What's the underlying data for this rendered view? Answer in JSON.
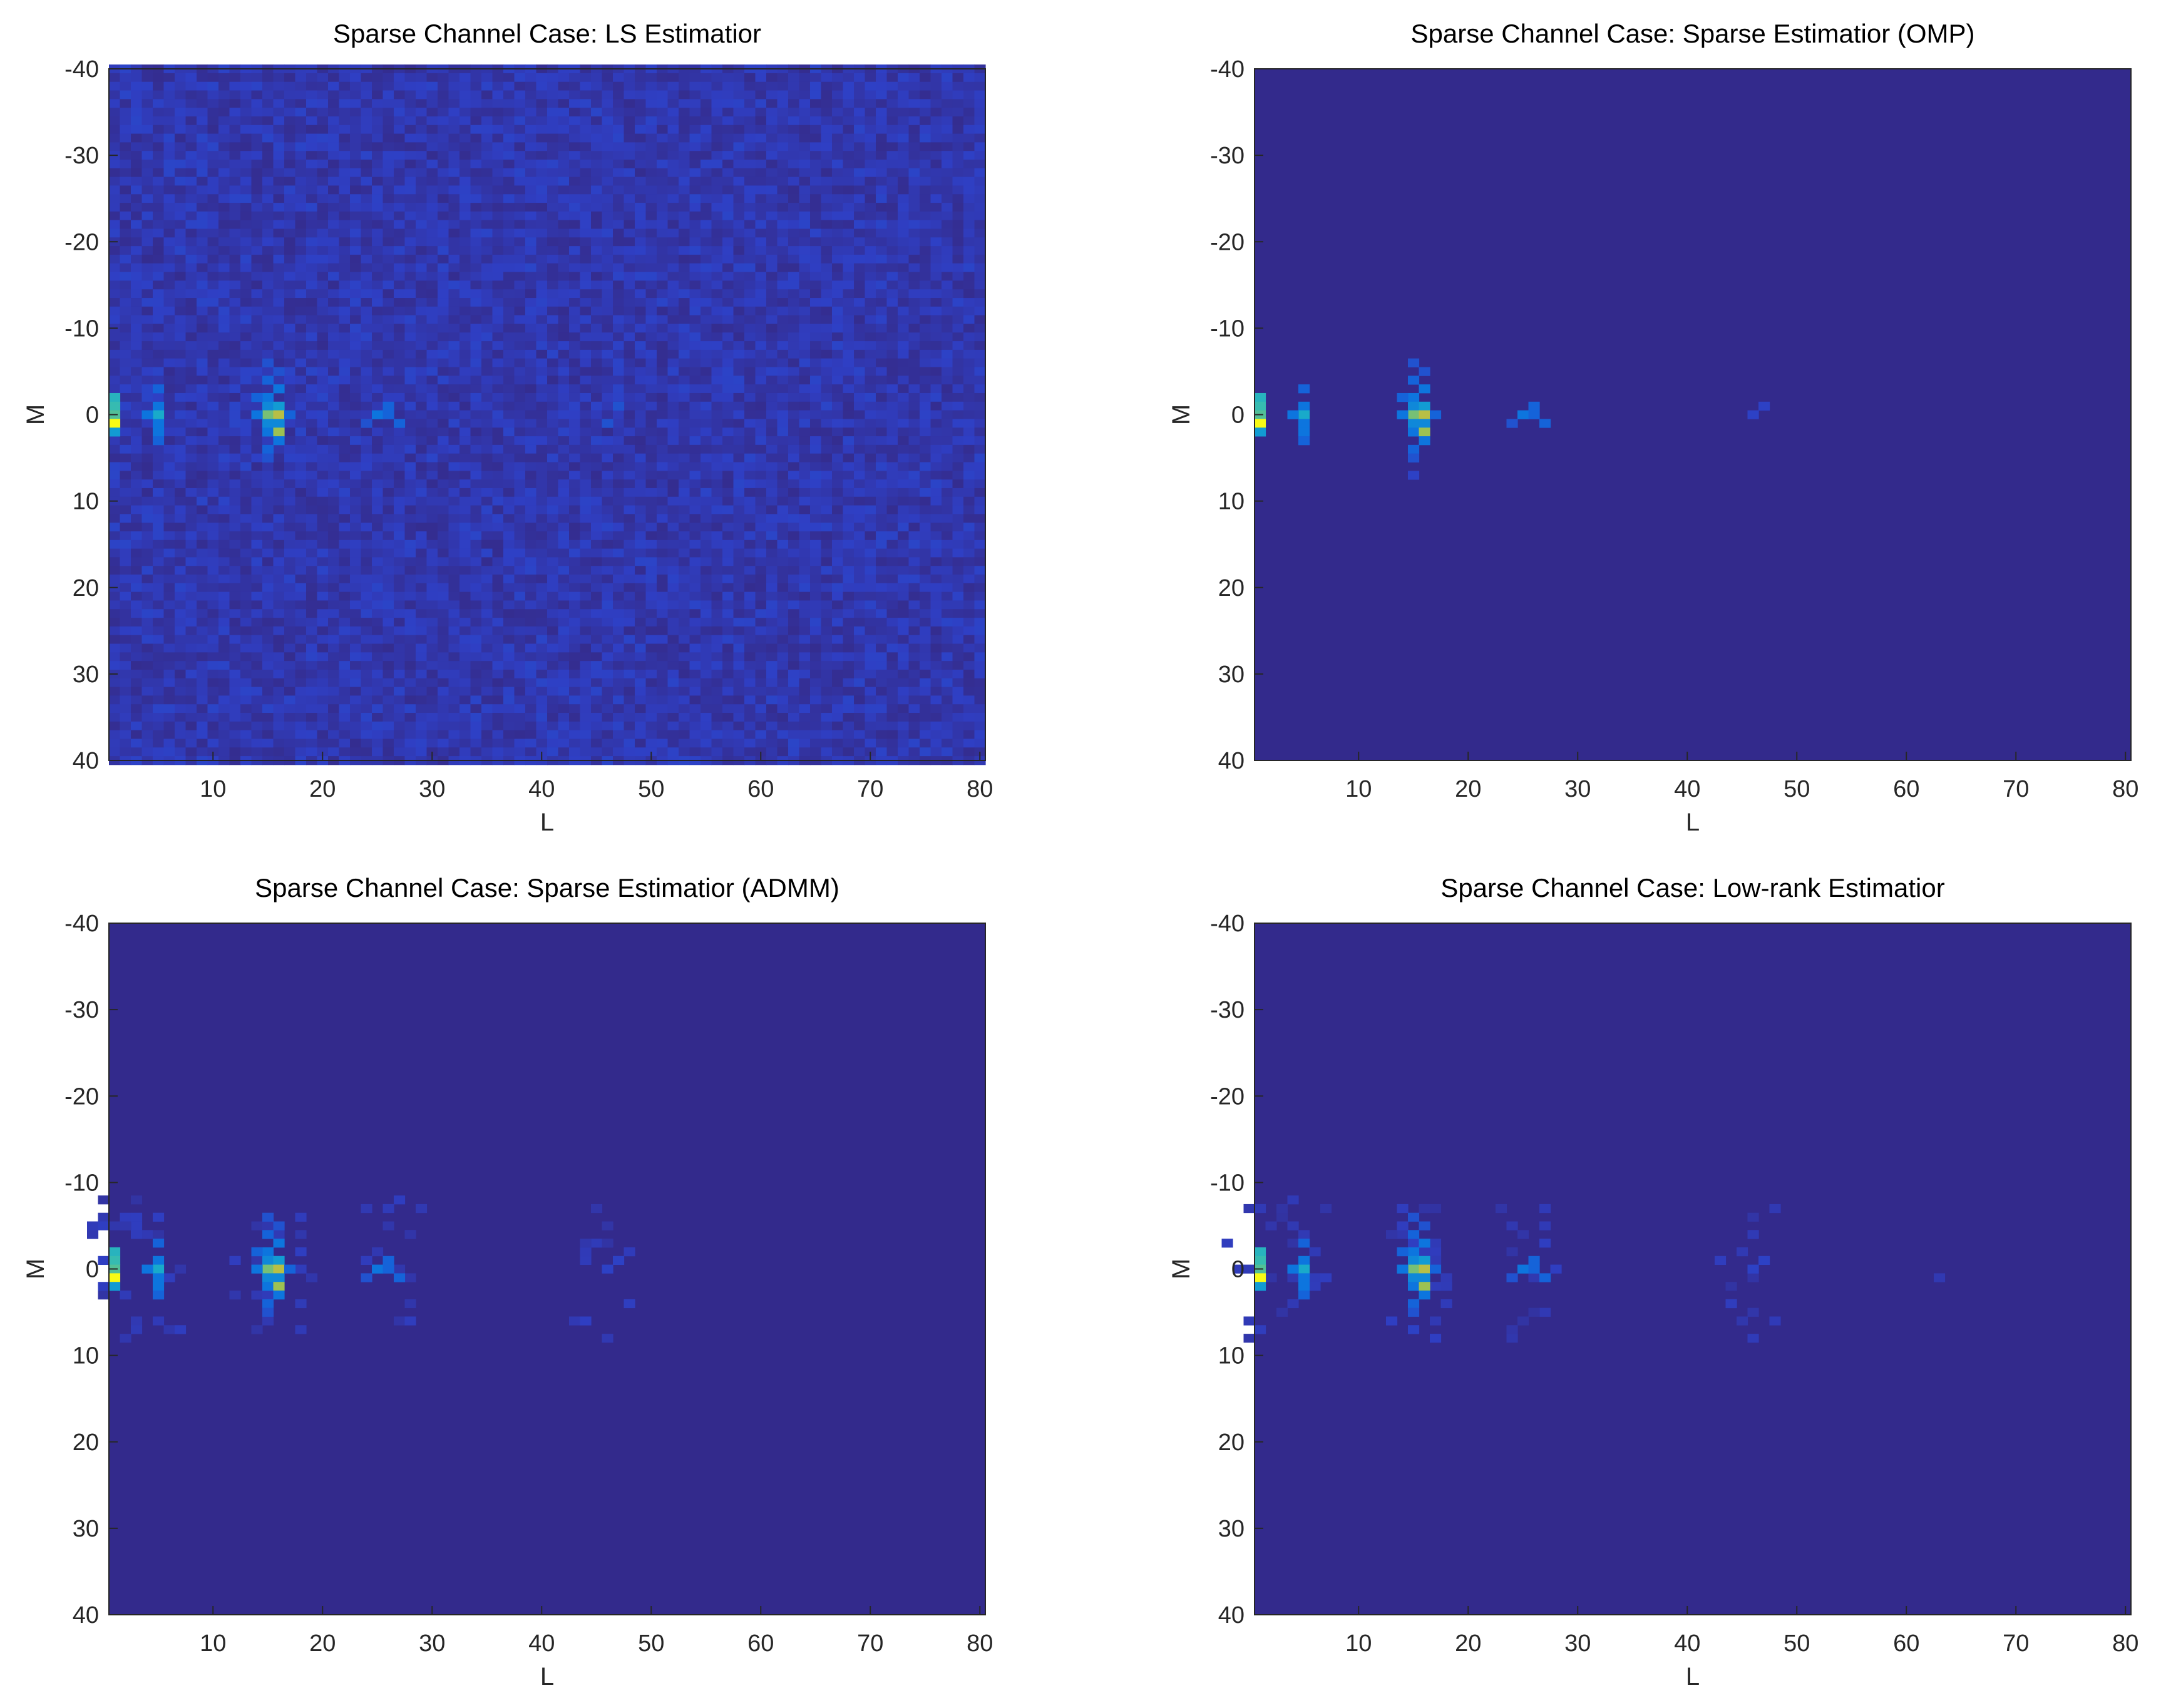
{
  "chart_data": [
    {
      "type": "heatmap",
      "title": "Sparse Channel Case: LS Estimatior",
      "xlabel": "L",
      "ylabel": "M",
      "xlim": [
        0.5,
        80.5
      ],
      "ylim": [
        -40,
        40
      ],
      "y_reversed": true,
      "xticks": [
        10,
        20,
        30,
        40,
        50,
        60,
        70,
        80
      ],
      "yticks": [
        -40,
        -30,
        -20,
        -10,
        0,
        10,
        20,
        30,
        40
      ],
      "background_color": "#332a8c",
      "noise_level": "high",
      "colormap": [
        "#352a87",
        "#2f3fc4",
        "#0c6fe0",
        "#13a6d0",
        "#3cbfab",
        "#a8c148",
        "#e6b93a",
        "#f9fb15"
      ],
      "hot_cells": [
        {
          "x": 1,
          "y": -2,
          "v": 0.5
        },
        {
          "x": 1,
          "y": -1,
          "v": 0.55
        },
        {
          "x": 1,
          "y": 0,
          "v": 0.6
        },
        {
          "x": 1,
          "y": 1,
          "v": 1.0
        },
        {
          "x": 1,
          "y": 2,
          "v": 0.4
        },
        {
          "x": 5,
          "y": -3,
          "v": 0.25
        },
        {
          "x": 5,
          "y": -1,
          "v": 0.3
        },
        {
          "x": 5,
          "y": 0,
          "v": 0.45
        },
        {
          "x": 5,
          "y": 1,
          "v": 0.3
        },
        {
          "x": 5,
          "y": 2,
          "v": 0.3
        },
        {
          "x": 5,
          "y": 3,
          "v": 0.25
        },
        {
          "x": 4,
          "y": 0,
          "v": 0.3
        },
        {
          "x": 15,
          "y": -6,
          "v": 0.2
        },
        {
          "x": 15,
          "y": -4,
          "v": 0.25
        },
        {
          "x": 15,
          "y": -2,
          "v": 0.3
        },
        {
          "x": 15,
          "y": -1,
          "v": 0.35
        },
        {
          "x": 15,
          "y": 0,
          "v": 0.65
        },
        {
          "x": 15,
          "y": 1,
          "v": 0.35
        },
        {
          "x": 15,
          "y": 2,
          "v": 0.3
        },
        {
          "x": 15,
          "y": 4,
          "v": 0.25
        },
        {
          "x": 15,
          "y": 5,
          "v": 0.2
        },
        {
          "x": 16,
          "y": -5,
          "v": 0.2
        },
        {
          "x": 16,
          "y": -3,
          "v": 0.3
        },
        {
          "x": 16,
          "y": -1,
          "v": 0.4
        },
        {
          "x": 16,
          "y": 0,
          "v": 0.75
        },
        {
          "x": 16,
          "y": 1,
          "v": 0.35
        },
        {
          "x": 16,
          "y": 2,
          "v": 0.7
        },
        {
          "x": 16,
          "y": 3,
          "v": 0.3
        },
        {
          "x": 14,
          "y": 0,
          "v": 0.3
        },
        {
          "x": 14,
          "y": -2,
          "v": 0.25
        },
        {
          "x": 17,
          "y": 0,
          "v": 0.25
        },
        {
          "x": 25,
          "y": 0,
          "v": 0.3
        },
        {
          "x": 26,
          "y": 0,
          "v": 0.25
        },
        {
          "x": 26,
          "y": -1,
          "v": 0.25
        },
        {
          "x": 27,
          "y": 1,
          "v": 0.25
        },
        {
          "x": 24,
          "y": 1,
          "v": 0.2
        },
        {
          "x": 46,
          "y": 1,
          "v": 0.2
        },
        {
          "x": 47,
          "y": -1,
          "v": 0.2
        }
      ]
    },
    {
      "type": "heatmap",
      "title": "Sparse Channel Case: Sparse Estimatior (OMP)",
      "xlabel": "L",
      "ylabel": "M",
      "xlim": [
        0.5,
        80.5
      ],
      "ylim": [
        -40,
        40
      ],
      "y_reversed": true,
      "xticks": [
        10,
        20,
        30,
        40,
        50,
        60,
        70,
        80
      ],
      "yticks": [
        -40,
        -30,
        -20,
        -10,
        0,
        10,
        20,
        30,
        40
      ],
      "background_color": "#332a8c",
      "noise_level": "none",
      "colormap": [
        "#352a87",
        "#2f3fc4",
        "#0c6fe0",
        "#13a6d0",
        "#3cbfab",
        "#a8c148",
        "#e6b93a",
        "#f9fb15"
      ],
      "hot_cells": [
        {
          "x": 1,
          "y": -2,
          "v": 0.5
        },
        {
          "x": 1,
          "y": -1,
          "v": 0.55
        },
        {
          "x": 1,
          "y": 0,
          "v": 0.6
        },
        {
          "x": 1,
          "y": 1,
          "v": 1.0
        },
        {
          "x": 1,
          "y": 2,
          "v": 0.4
        },
        {
          "x": 5,
          "y": -3,
          "v": 0.25
        },
        {
          "x": 5,
          "y": -1,
          "v": 0.3
        },
        {
          "x": 5,
          "y": 0,
          "v": 0.45
        },
        {
          "x": 5,
          "y": 1,
          "v": 0.3
        },
        {
          "x": 5,
          "y": 2,
          "v": 0.3
        },
        {
          "x": 5,
          "y": 3,
          "v": 0.25
        },
        {
          "x": 4,
          "y": 0,
          "v": 0.3
        },
        {
          "x": 15,
          "y": -6,
          "v": 0.2
        },
        {
          "x": 15,
          "y": -4,
          "v": 0.25
        },
        {
          "x": 15,
          "y": -2,
          "v": 0.3
        },
        {
          "x": 15,
          "y": -1,
          "v": 0.35
        },
        {
          "x": 15,
          "y": 0,
          "v": 0.65
        },
        {
          "x": 15,
          "y": 1,
          "v": 0.35
        },
        {
          "x": 15,
          "y": 2,
          "v": 0.3
        },
        {
          "x": 15,
          "y": 4,
          "v": 0.25
        },
        {
          "x": 15,
          "y": 5,
          "v": 0.2
        },
        {
          "x": 15,
          "y": 7,
          "v": 0.15
        },
        {
          "x": 16,
          "y": -5,
          "v": 0.2
        },
        {
          "x": 16,
          "y": -3,
          "v": 0.3
        },
        {
          "x": 16,
          "y": -1,
          "v": 0.4
        },
        {
          "x": 16,
          "y": 0,
          "v": 0.75
        },
        {
          "x": 16,
          "y": 1,
          "v": 0.35
        },
        {
          "x": 16,
          "y": 2,
          "v": 0.7
        },
        {
          "x": 16,
          "y": 3,
          "v": 0.3
        },
        {
          "x": 14,
          "y": 0,
          "v": 0.3
        },
        {
          "x": 14,
          "y": -2,
          "v": 0.25
        },
        {
          "x": 17,
          "y": 0,
          "v": 0.25
        },
        {
          "x": 25,
          "y": 0,
          "v": 0.3
        },
        {
          "x": 26,
          "y": 0,
          "v": 0.25
        },
        {
          "x": 26,
          "y": -1,
          "v": 0.25
        },
        {
          "x": 27,
          "y": 1,
          "v": 0.25
        },
        {
          "x": 24,
          "y": 1,
          "v": 0.2
        },
        {
          "x": 46,
          "y": 0,
          "v": 0.15
        },
        {
          "x": 47,
          "y": -1,
          "v": 0.15
        }
      ]
    },
    {
      "type": "heatmap",
      "title": "Sparse Channel Case: Sparse Estimatior (ADMM)",
      "xlabel": "L",
      "ylabel": "M",
      "xlim": [
        0.5,
        80.5
      ],
      "ylim": [
        -40,
        40
      ],
      "y_reversed": true,
      "xticks": [
        10,
        20,
        30,
        40,
        50,
        60,
        70,
        80
      ],
      "yticks": [
        -40,
        -30,
        -20,
        -10,
        0,
        10,
        20,
        30,
        40
      ],
      "background_color": "#332a8c",
      "noise_level": "low",
      "colormap": [
        "#352a87",
        "#2f3fc4",
        "#0c6fe0",
        "#13a6d0",
        "#3cbfab",
        "#a8c148",
        "#e6b93a",
        "#f9fb15"
      ],
      "hot_cells": [
        {
          "x": 1,
          "y": -2,
          "v": 0.5
        },
        {
          "x": 1,
          "y": -1,
          "v": 0.55
        },
        {
          "x": 1,
          "y": 0,
          "v": 0.6
        },
        {
          "x": 1,
          "y": 1,
          "v": 1.0
        },
        {
          "x": 1,
          "y": 2,
          "v": 0.4
        },
        {
          "x": 5,
          "y": -3,
          "v": 0.25
        },
        {
          "x": 5,
          "y": -1,
          "v": 0.3
        },
        {
          "x": 5,
          "y": 0,
          "v": 0.45
        },
        {
          "x": 5,
          "y": 1,
          "v": 0.3
        },
        {
          "x": 5,
          "y": 2,
          "v": 0.3
        },
        {
          "x": 5,
          "y": 3,
          "v": 0.25
        },
        {
          "x": 4,
          "y": 0,
          "v": 0.3
        },
        {
          "x": 15,
          "y": -6,
          "v": 0.2
        },
        {
          "x": 15,
          "y": -4,
          "v": 0.25
        },
        {
          "x": 15,
          "y": -2,
          "v": 0.3
        },
        {
          "x": 15,
          "y": -1,
          "v": 0.35
        },
        {
          "x": 15,
          "y": 0,
          "v": 0.65
        },
        {
          "x": 15,
          "y": 1,
          "v": 0.35
        },
        {
          "x": 15,
          "y": 2,
          "v": 0.3
        },
        {
          "x": 15,
          "y": 4,
          "v": 0.25
        },
        {
          "x": 15,
          "y": 5,
          "v": 0.2
        },
        {
          "x": 16,
          "y": -5,
          "v": 0.2
        },
        {
          "x": 16,
          "y": -3,
          "v": 0.3
        },
        {
          "x": 16,
          "y": -1,
          "v": 0.4
        },
        {
          "x": 16,
          "y": 0,
          "v": 0.75
        },
        {
          "x": 16,
          "y": 1,
          "v": 0.35
        },
        {
          "x": 16,
          "y": 2,
          "v": 0.7
        },
        {
          "x": 16,
          "y": 3,
          "v": 0.3
        },
        {
          "x": 14,
          "y": 0,
          "v": 0.3
        },
        {
          "x": 14,
          "y": -2,
          "v": 0.25
        },
        {
          "x": 17,
          "y": 0,
          "v": 0.25
        },
        {
          "x": 25,
          "y": 0,
          "v": 0.3
        },
        {
          "x": 26,
          "y": 0,
          "v": 0.25
        },
        {
          "x": 26,
          "y": -1,
          "v": 0.25
        },
        {
          "x": 27,
          "y": 1,
          "v": 0.25
        },
        {
          "x": 24,
          "y": 1,
          "v": 0.2
        },
        {
          "x": 46,
          "y": 0,
          "v": 0.15
        },
        {
          "x": 47,
          "y": -1,
          "v": 0.15
        }
      ]
    },
    {
      "type": "heatmap",
      "title": "Sparse Channel Case: Low-rank Estimatior",
      "xlabel": "L",
      "ylabel": "M",
      "xlim": [
        0.5,
        80.5
      ],
      "ylim": [
        -40,
        40
      ],
      "y_reversed": true,
      "xticks": [
        10,
        20,
        30,
        40,
        50,
        60,
        70,
        80
      ],
      "yticks": [
        -40,
        -30,
        -20,
        -10,
        0,
        10,
        20,
        30,
        40
      ],
      "background_color": "#332a8c",
      "noise_level": "low",
      "colormap": [
        "#352a87",
        "#2f3fc4",
        "#0c6fe0",
        "#13a6d0",
        "#3cbfab",
        "#a8c148",
        "#e6b93a",
        "#f9fb15"
      ],
      "hot_cells": [
        {
          "x": 1,
          "y": -2,
          "v": 0.5
        },
        {
          "x": 1,
          "y": -1,
          "v": 0.55
        },
        {
          "x": 1,
          "y": 0,
          "v": 0.6
        },
        {
          "x": 1,
          "y": 1,
          "v": 1.0
        },
        {
          "x": 1,
          "y": 2,
          "v": 0.4
        },
        {
          "x": 5,
          "y": -3,
          "v": 0.25
        },
        {
          "x": 5,
          "y": -1,
          "v": 0.3
        },
        {
          "x": 5,
          "y": 0,
          "v": 0.45
        },
        {
          "x": 5,
          "y": 1,
          "v": 0.3
        },
        {
          "x": 5,
          "y": 2,
          "v": 0.3
        },
        {
          "x": 5,
          "y": 3,
          "v": 0.25
        },
        {
          "x": 4,
          "y": 0,
          "v": 0.3
        },
        {
          "x": 15,
          "y": -6,
          "v": 0.2
        },
        {
          "x": 15,
          "y": -4,
          "v": 0.25
        },
        {
          "x": 15,
          "y": -2,
          "v": 0.3
        },
        {
          "x": 15,
          "y": -1,
          "v": 0.35
        },
        {
          "x": 15,
          "y": 0,
          "v": 0.65
        },
        {
          "x": 15,
          "y": 1,
          "v": 0.35
        },
        {
          "x": 15,
          "y": 2,
          "v": 0.3
        },
        {
          "x": 15,
          "y": 4,
          "v": 0.25
        },
        {
          "x": 15,
          "y": 5,
          "v": 0.2
        },
        {
          "x": 15,
          "y": 7,
          "v": 0.15
        },
        {
          "x": 16,
          "y": -5,
          "v": 0.2
        },
        {
          "x": 16,
          "y": -3,
          "v": 0.3
        },
        {
          "x": 16,
          "y": -1,
          "v": 0.4
        },
        {
          "x": 16,
          "y": 0,
          "v": 0.75
        },
        {
          "x": 16,
          "y": 1,
          "v": 0.35
        },
        {
          "x": 16,
          "y": 2,
          "v": 0.7
        },
        {
          "x": 16,
          "y": 3,
          "v": 0.3
        },
        {
          "x": 14,
          "y": 0,
          "v": 0.3
        },
        {
          "x": 14,
          "y": -2,
          "v": 0.25
        },
        {
          "x": 17,
          "y": 0,
          "v": 0.25
        },
        {
          "x": 25,
          "y": 0,
          "v": 0.3
        },
        {
          "x": 26,
          "y": 0,
          "v": 0.25
        },
        {
          "x": 26,
          "y": -1,
          "v": 0.25
        },
        {
          "x": 27,
          "y": 1,
          "v": 0.25
        },
        {
          "x": 24,
          "y": 1,
          "v": 0.2
        },
        {
          "x": 46,
          "y": 0,
          "v": 0.15
        },
        {
          "x": 47,
          "y": -1,
          "v": 0.15
        },
        {
          "x": 63,
          "y": 1,
          "v": 0.1
        }
      ]
    }
  ]
}
